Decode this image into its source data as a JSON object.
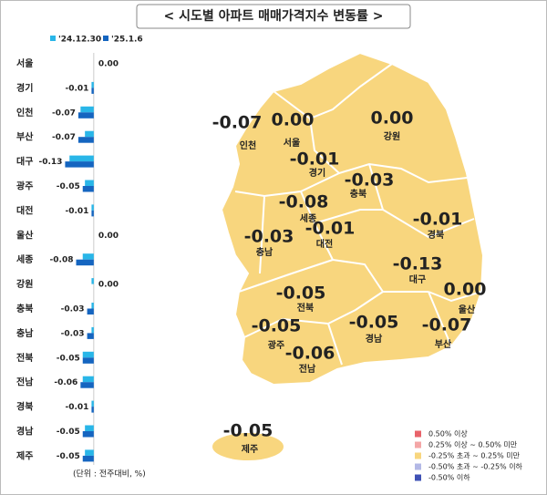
{
  "chart_data": {
    "type": "hbar",
    "title": "< 시도별 아파트 매매가격지수 변동률 >",
    "note": "(단위 : 전주대비, %)",
    "categories": [
      "서울",
      "경기",
      "인천",
      "부산",
      "대구",
      "광주",
      "대전",
      "울산",
      "세종",
      "강원",
      "충북",
      "충남",
      "전북",
      "전남",
      "경북",
      "경남",
      "제주"
    ],
    "series": [
      {
        "name": "'24.12.30",
        "color": "#29b6e8",
        "values": [
          0,
          -0.01,
          -0.06,
          -0.04,
          -0.11,
          -0.04,
          -0.01,
          0,
          -0.05,
          -0.01,
          -0.01,
          -0.01,
          -0.05,
          -0.05,
          -0.01,
          -0.04,
          -0.04
        ]
      },
      {
        "name": "'25.1.6",
        "color": "#1565c0",
        "values": [
          0,
          -0.01,
          -0.07,
          -0.07,
          -0.13,
          -0.05,
          -0.01,
          0,
          -0.08,
          0,
          -0.03,
          -0.03,
          -0.05,
          -0.06,
          -0.01,
          -0.05,
          -0.05
        ],
        "value_labels": [
          "0.00",
          "-0.01",
          "-0.07",
          "-0.07",
          "-0.13",
          "-0.05",
          "-0.01",
          "0.00",
          "-0.08",
          "0.00",
          "-0.03",
          "-0.03",
          "-0.05",
          "-0.06",
          "-0.01",
          "-0.05",
          "-0.05"
        ]
      }
    ],
    "xlim": [
      -0.14,
      0.1
    ],
    "map_legend": [
      {
        "label": "0.50% 이상",
        "color": "#e8636a"
      },
      {
        "label": "0.25% 이상 ~ 0.50% 미만",
        "color": "#f4a6a6"
      },
      {
        "label": "-0.25% 초과 ~ 0.25% 미만",
        "color": "#f8d67e"
      },
      {
        "label": "-0.50% 초과 ~ -0.25% 이하",
        "color": "#b3b8e6"
      },
      {
        "label": "-0.50% 이하",
        "color": "#3f51b5"
      }
    ]
  }
}
